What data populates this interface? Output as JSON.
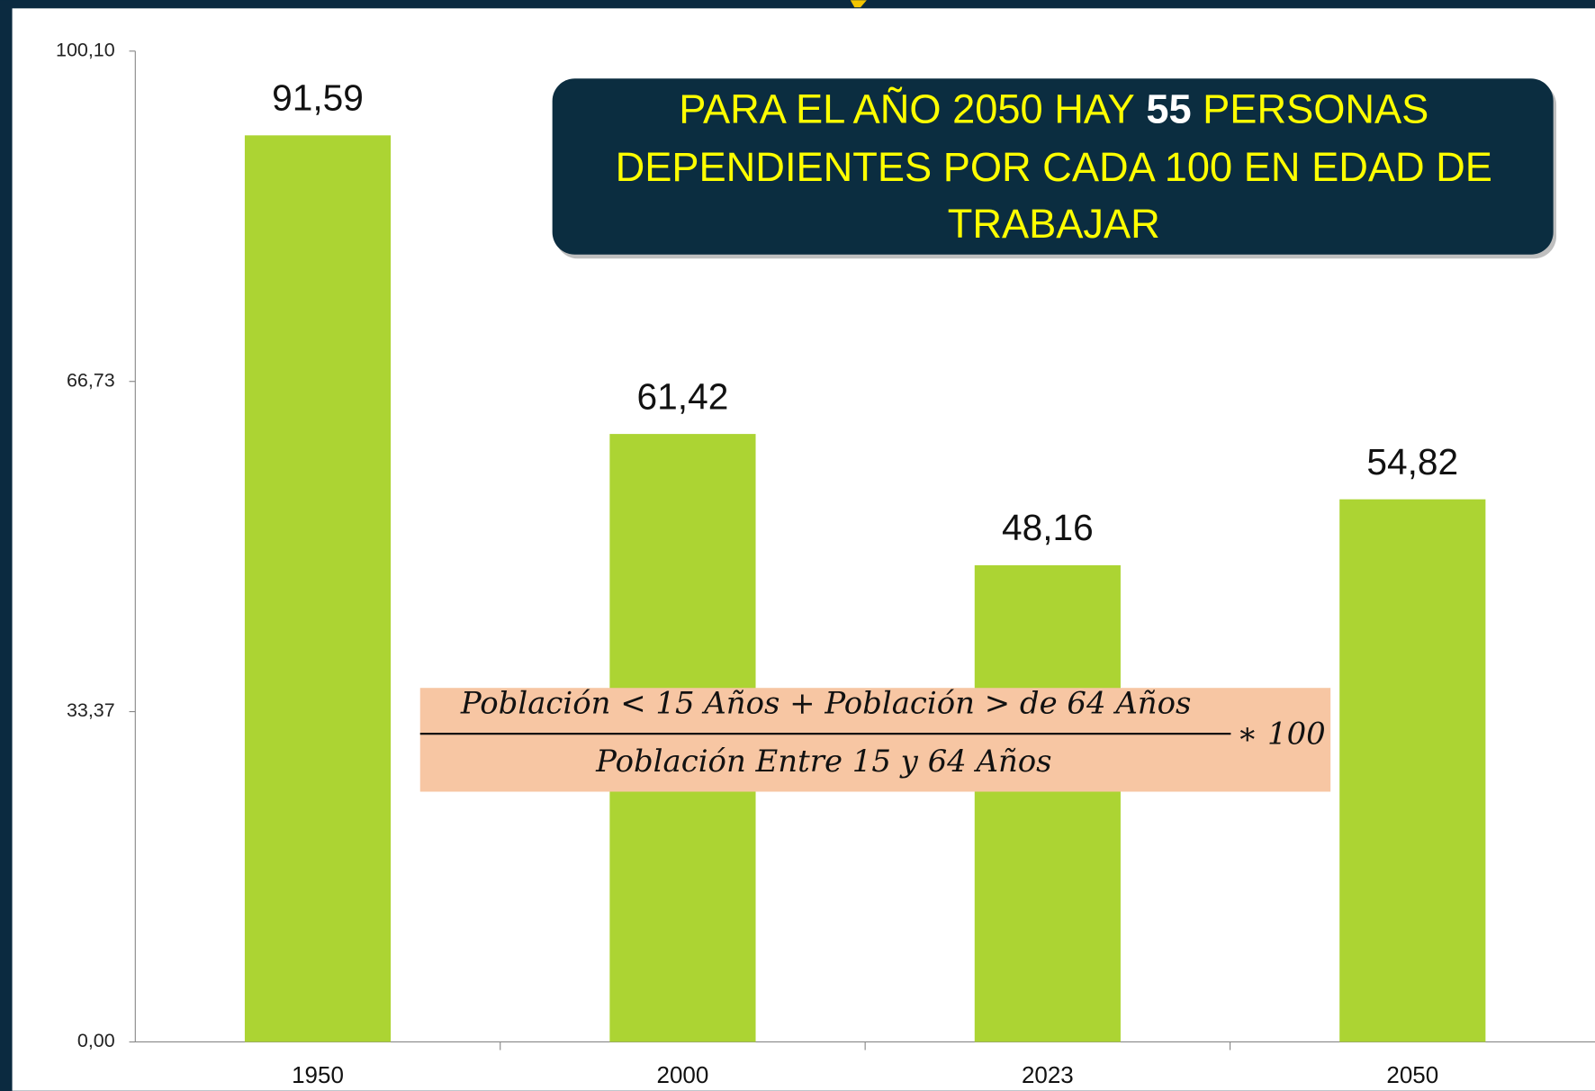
{
  "chart_data": {
    "type": "bar",
    "categories": [
      "1950",
      "2000",
      "2023",
      "2050"
    ],
    "values": [
      91.59,
      61.42,
      48.16,
      54.82
    ],
    "value_labels": [
      "91,59",
      "61,42",
      "48,16",
      "54,82"
    ],
    "color": "#acd433",
    "ylim": [
      0,
      100.1
    ],
    "yticks": [
      {
        "value": 0,
        "label": "0,00"
      },
      {
        "value": 33.37,
        "label": "33,37"
      },
      {
        "value": 66.73,
        "label": "66,73"
      },
      {
        "value": 100.1,
        "label": "100,10"
      }
    ],
    "annotation": {
      "line1_before": "PARA EL AÑO 2050 HAY",
      "highlight": "55",
      "line1_after": "PERSONAS",
      "line2": "DEPENDIENTES POR CADA 100 EN EDAD DE",
      "line3": "TRABAJAR"
    },
    "formula": {
      "numerator": "Población < 15 Años + Población > de 64 Años",
      "denominator": "Población Entre 15 y 64 Años",
      "factor": "∗ 100"
    }
  }
}
